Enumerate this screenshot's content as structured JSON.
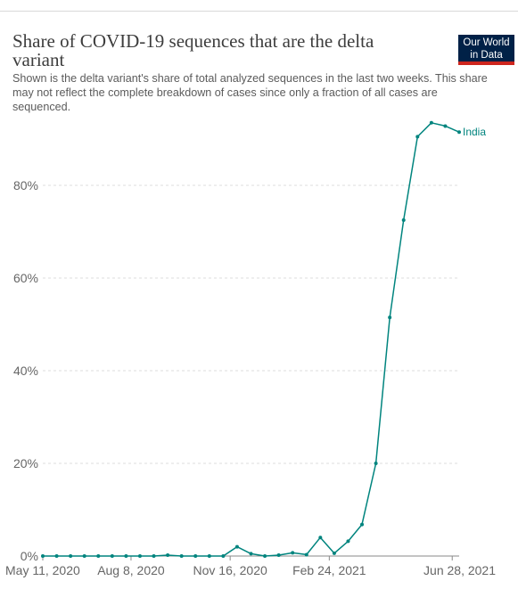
{
  "header": {
    "title": "Share of COVID-19 sequences that are the delta variant",
    "subtitle": "Shown is the delta variant's share of total analyzed sequences in the last two weeks. This share may not reflect the complete breakdown of cases since only a fraction of all cases are sequenced.",
    "logo_line1": "Our World",
    "logo_line2": "in Data"
  },
  "colors": {
    "series": "#00847e",
    "logo_bg": "#002147",
    "logo_accent": "#ce261e",
    "grid": "#dddddd"
  },
  "chart_data": {
    "type": "line",
    "title": "Share of COVID-19 sequences that are the delta variant",
    "xlabel": "",
    "ylabel": "",
    "y_ticks": [
      0,
      20,
      40,
      60,
      80
    ],
    "y_tick_labels": [
      "0%",
      "20%",
      "40%",
      "60%",
      "80%"
    ],
    "ylim": [
      0,
      95
    ],
    "x_ticks": [
      "2020-05-11",
      "2020-08-08",
      "2020-11-16",
      "2021-02-24",
      "2021-06-28"
    ],
    "x_tick_labels": [
      "May 11, 2020",
      "Aug 8, 2020",
      "Nov 16, 2020",
      "Feb 24, 2021",
      "Jun 28, 2021"
    ],
    "grid": true,
    "series": [
      {
        "name": "India",
        "x": [
          "2020-05-11",
          "2020-05-25",
          "2020-06-08",
          "2020-06-22",
          "2020-07-06",
          "2020-07-20",
          "2020-08-03",
          "2020-08-17",
          "2020-08-31",
          "2020-09-14",
          "2020-09-28",
          "2020-10-12",
          "2020-10-26",
          "2020-11-09",
          "2020-11-23",
          "2020-12-07",
          "2020-12-21",
          "2021-01-04",
          "2021-01-18",
          "2021-02-01",
          "2021-02-15",
          "2021-03-01",
          "2021-03-15",
          "2021-03-29",
          "2021-04-12",
          "2021-04-26",
          "2021-05-10",
          "2021-05-24",
          "2021-06-07",
          "2021-06-21",
          "2021-07-05"
        ],
        "values": [
          0,
          0,
          0,
          0,
          0,
          0,
          0,
          0,
          0,
          0.2,
          0,
          0,
          0,
          0,
          2,
          0.5,
          0,
          0.2,
          0.7,
          0.3,
          4,
          0.6,
          3.2,
          6.8,
          20,
          51.5,
          72.5,
          90.5,
          93.5,
          92.8,
          91.5
        ]
      }
    ]
  }
}
